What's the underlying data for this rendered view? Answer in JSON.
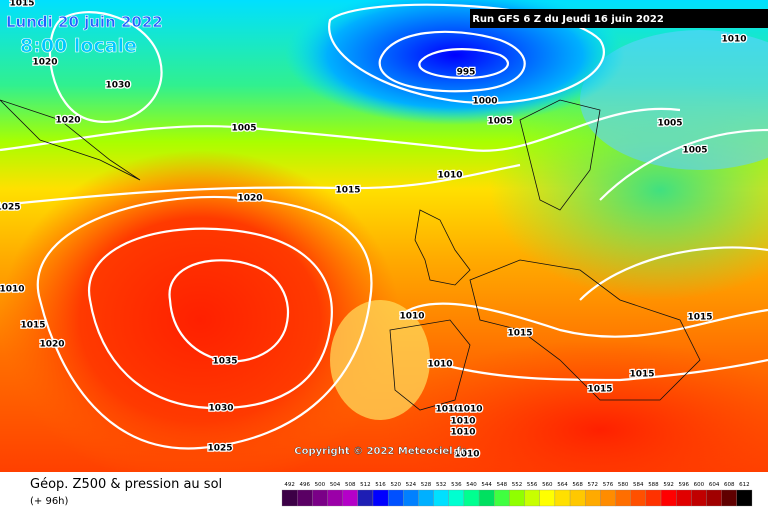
{
  "header": {
    "valid_date": "Lundi 20 juin 2022",
    "local_time": "8:00 locale",
    "run_info": "Run GFS 6 Z du Jeudi 16 juin 2022"
  },
  "copyright": "Copyright © 2022 Meteociel.fr",
  "isobar_labels": [
    1015,
    1020,
    1030,
    1020,
    1005,
    995,
    1000,
    1005,
    1010,
    1005,
    1005,
    1010,
    1015,
    1020,
    1025,
    1010,
    1015,
    1020,
    1035,
    1030,
    1025,
    1010,
    1015,
    1010,
    1015,
    1015,
    1015,
    1010,
    1010,
    1010,
    1010,
    1010
  ],
  "footer": {
    "title": "Géop. Z500 & pression au sol",
    "lead_time": "(+ 96h)"
  },
  "colorbar": {
    "values": [
      492,
      496,
      500,
      504,
      508,
      512,
      516,
      520,
      524,
      528,
      532,
      536,
      540,
      544,
      548,
      552,
      556,
      560,
      564,
      568,
      572,
      576,
      580,
      584,
      588,
      592,
      596,
      600,
      604,
      608,
      612
    ],
    "colors": [
      "#3c0046",
      "#5a0064",
      "#7a0087",
      "#9b00a8",
      "#b400c8",
      "#1e1eb4",
      "#0000ff",
      "#0050ff",
      "#0080ff",
      "#00b0ff",
      "#00e0ff",
      "#00ffd0",
      "#00ff90",
      "#00e060",
      "#40ff40",
      "#90ff00",
      "#c8ff00",
      "#ffff00",
      "#ffe000",
      "#ffc800",
      "#ffaa00",
      "#ff8c00",
      "#ff6e00",
      "#ff5000",
      "#ff3200",
      "#ff0000",
      "#e00000",
      "#c00000",
      "#a00000",
      "#600000",
      "#000000"
    ]
  }
}
